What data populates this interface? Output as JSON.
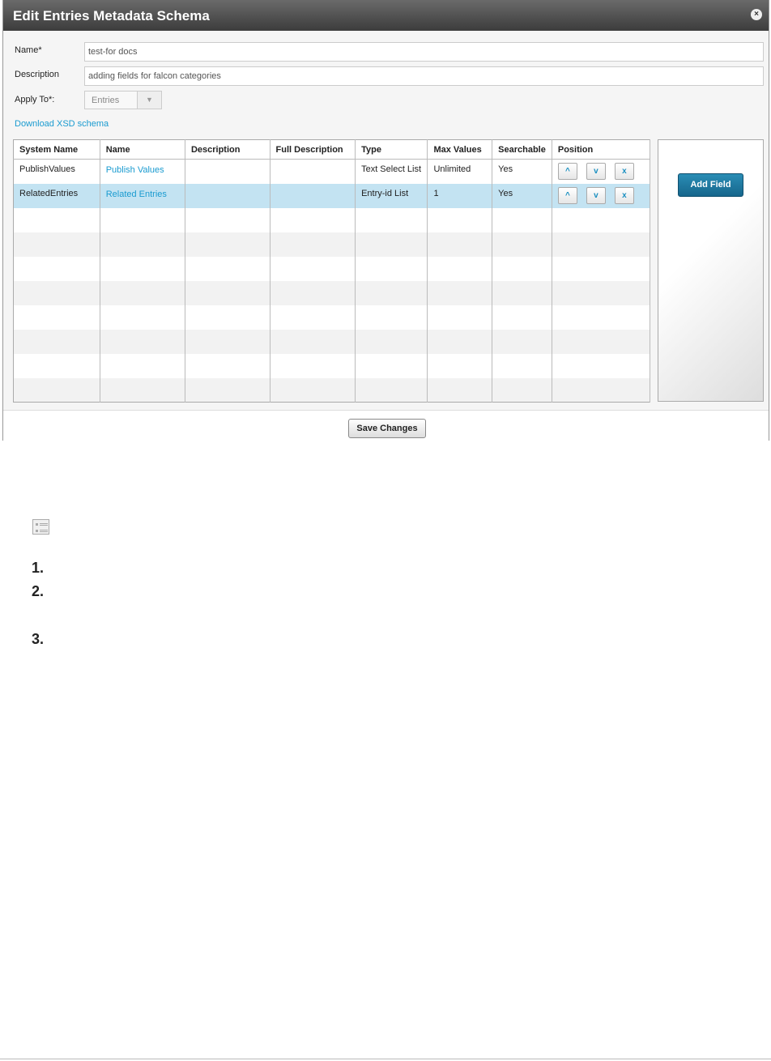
{
  "dialog": {
    "title": "Edit Entries Metadata Schema",
    "close_icon": "close-icon"
  },
  "form": {
    "name_label": "Name*",
    "name_value": "test-for docs",
    "description_label": "Description",
    "description_value": "adding fields for falcon categories",
    "apply_to_label": "Apply To*:",
    "apply_to_value": "Entries",
    "download_link": "Download XSD schema"
  },
  "table": {
    "headers": [
      "System Name",
      "Name",
      "Description",
      "Full Description",
      "Type",
      "Max Values",
      "Searchable",
      "Position"
    ],
    "rows": [
      {
        "system_name": "PublishValues",
        "name": "Publish Values",
        "description": "",
        "full_description": "",
        "type": "Text Select List",
        "max_values": "Unlimited",
        "searchable": "Yes"
      },
      {
        "system_name": "RelatedEntries",
        "name": "Related Entries",
        "description": "",
        "full_description": "",
        "type": "Entry-id List",
        "max_values": "1",
        "searchable": "Yes",
        "selected": true
      }
    ],
    "position_buttons": {
      "up": "^",
      "down": "v",
      "delete": "x"
    }
  },
  "add_field_label": "Add Field",
  "save_label": "Save Changes",
  "steps": [
    "1.",
    "2.",
    "3."
  ]
}
